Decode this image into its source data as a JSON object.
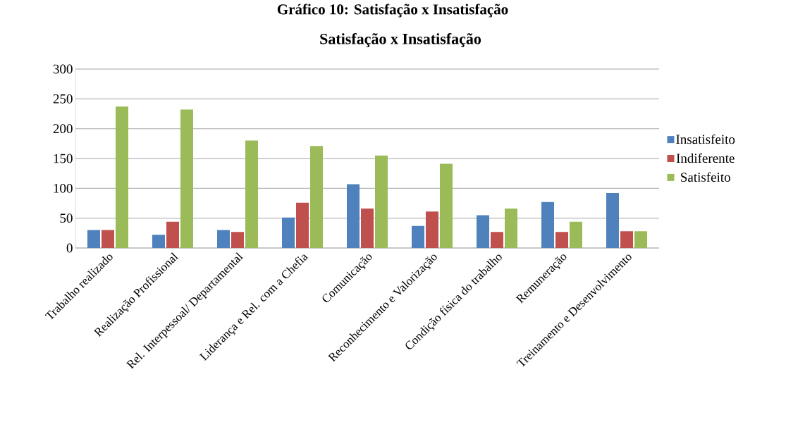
{
  "chart_data": {
    "type": "bar",
    "title": "Gráfico 10: Satisfação x Insatisfação",
    "subtitle": "Satisfação x Insatisfação",
    "categories": [
      "Trabalho realizado",
      "Realização Profissional",
      "Rel. Interpessoal/ Departamental",
      "Liderança e Rel. com a Chefia",
      "Comunicação",
      "Reconhecimento e Valorização",
      "Condição física do trabalho",
      "Remuneração",
      "Treinamento e Desenvolvimento"
    ],
    "series": [
      {
        "name": "Insatisfeito",
        "color": "#4f81bd",
        "values": [
          30,
          22,
          30,
          51,
          107,
          37,
          55,
          77,
          92
        ]
      },
      {
        "name": "Indiferente",
        "color": "#c0504d",
        "values": [
          30,
          44,
          27,
          76,
          66,
          61,
          27,
          27,
          28
        ]
      },
      {
        "name": "Satisfeito",
        "color": "#9bbb59",
        "values": [
          237,
          232,
          180,
          171,
          155,
          141,
          66,
          44,
          28
        ]
      }
    ],
    "ylim": [
      0,
      300
    ],
    "yticks": [
      0,
      50,
      100,
      150,
      200,
      250,
      300
    ],
    "grid": "y",
    "legend": "right"
  }
}
